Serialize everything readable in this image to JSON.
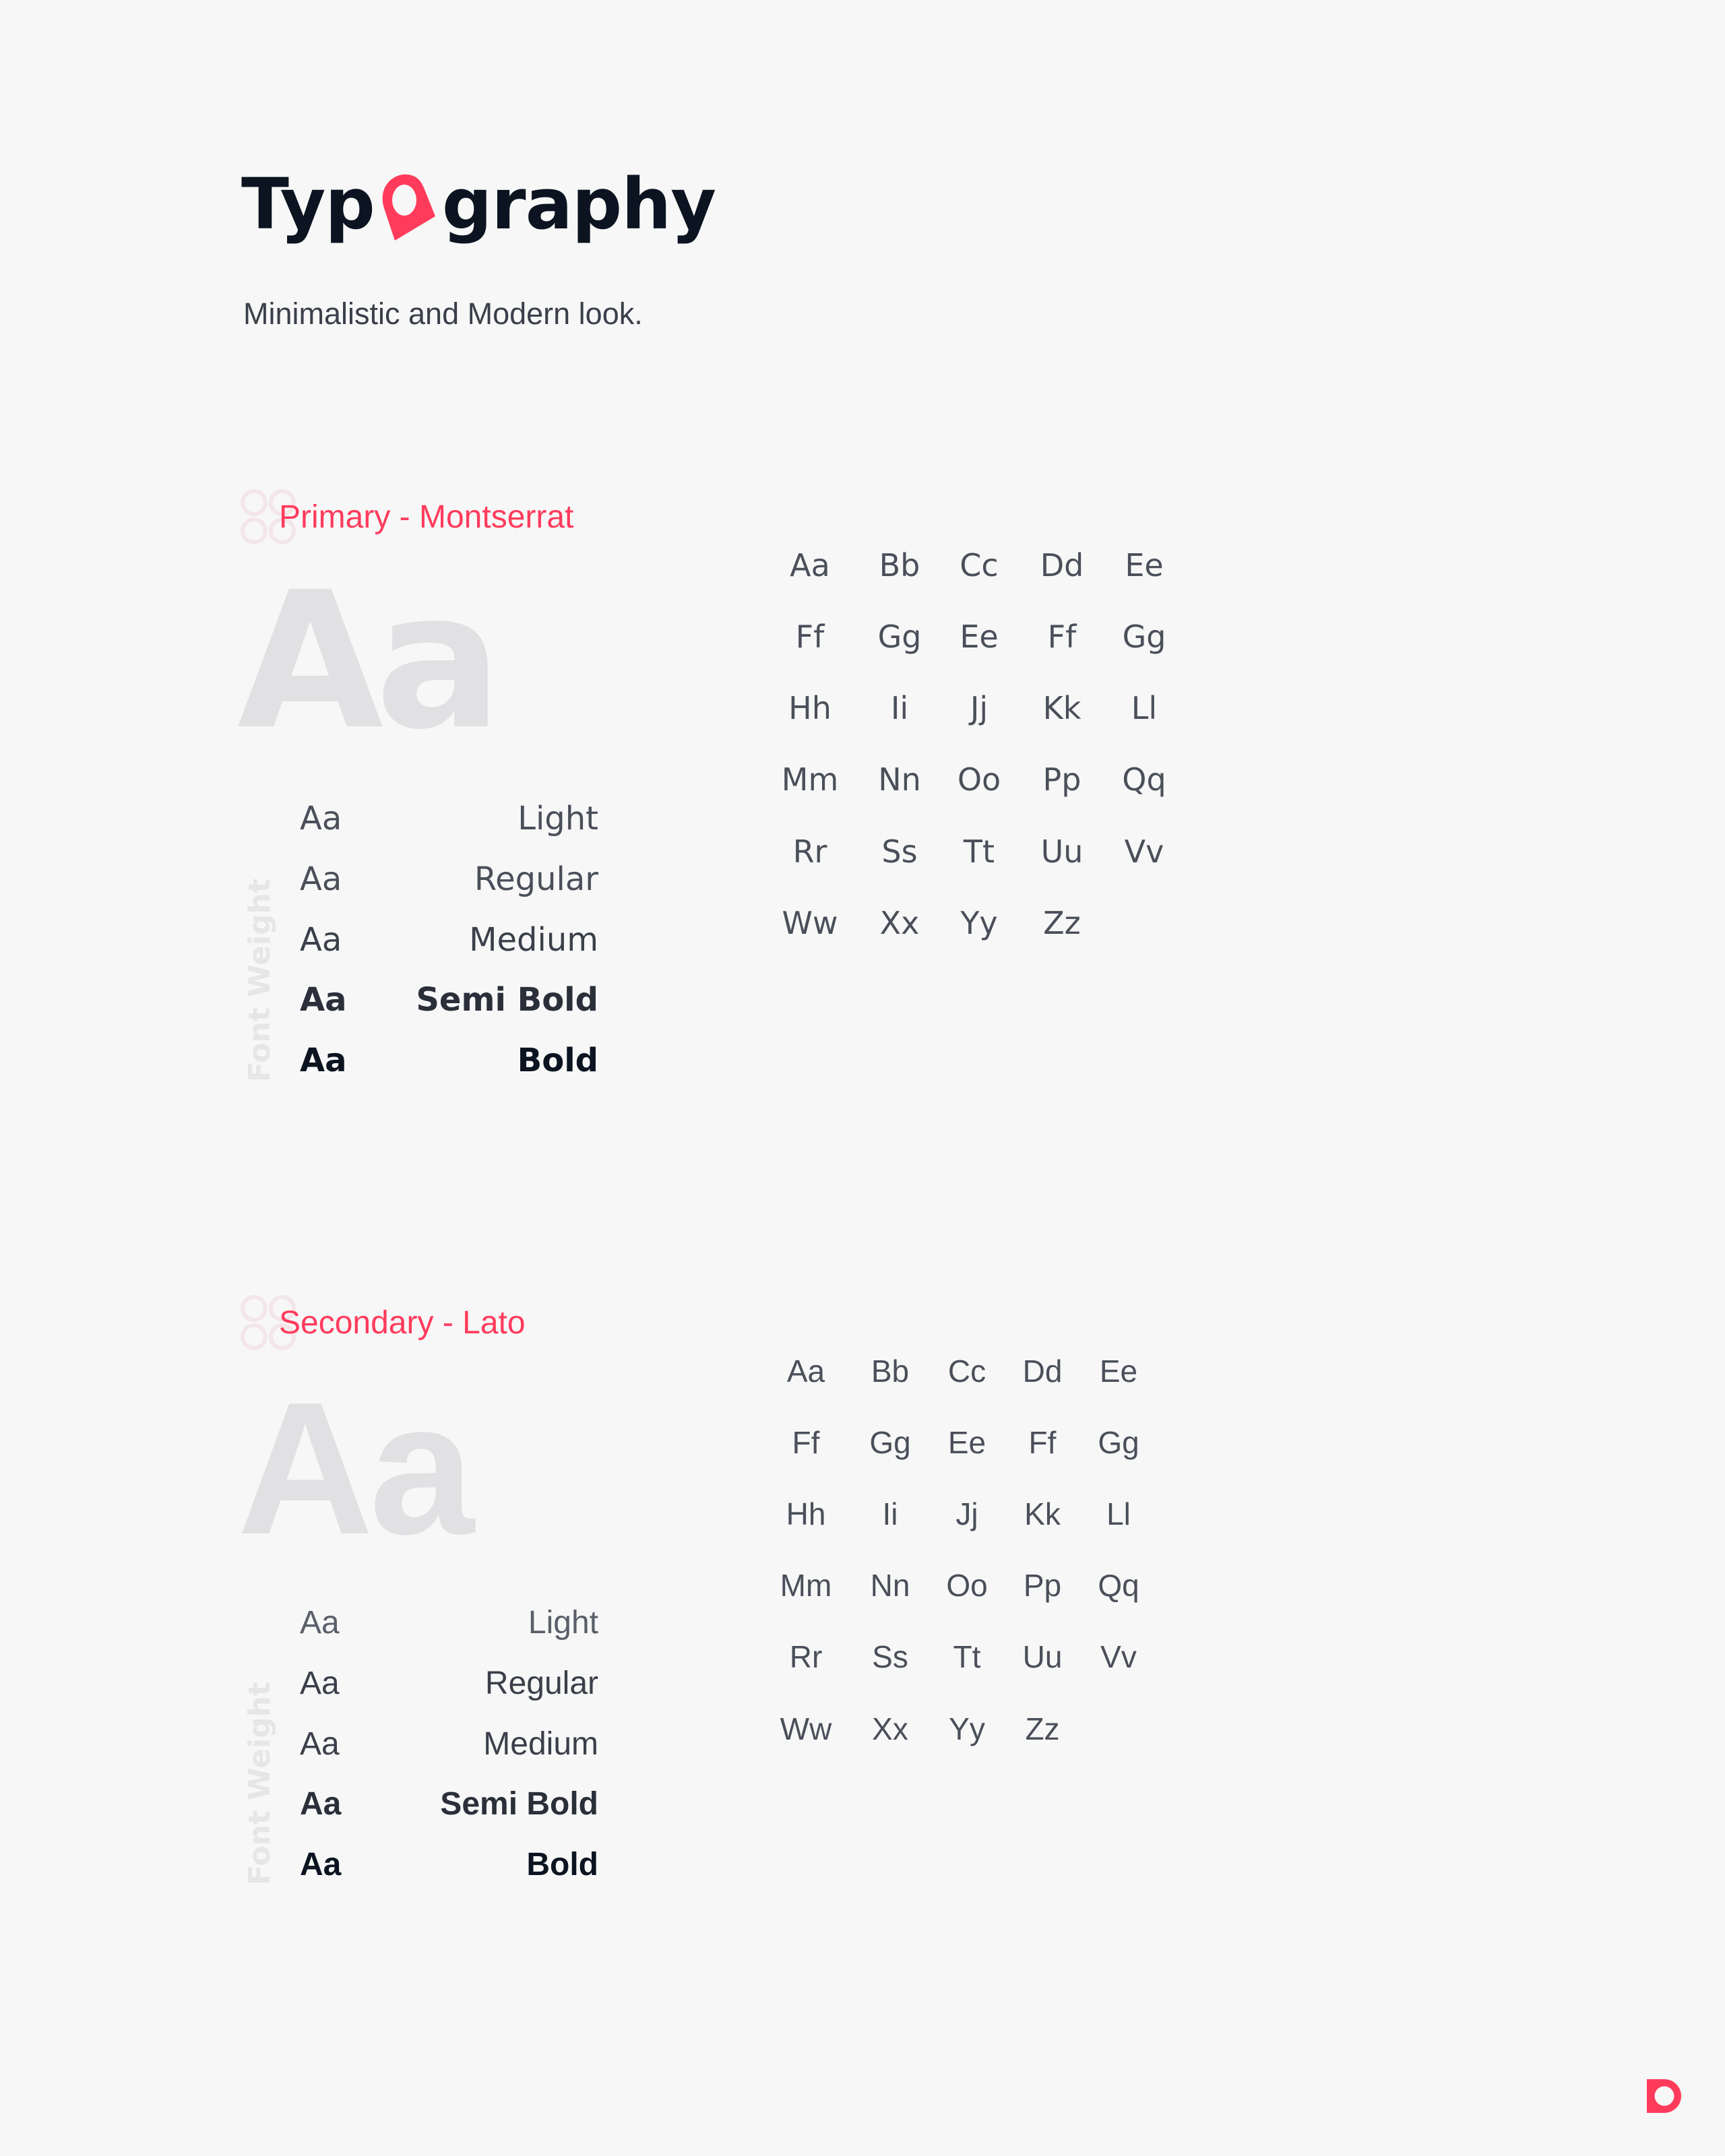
{
  "header": {
    "title_before": "Typ",
    "title_after": "graphy",
    "title_icon": "map-pin-icon",
    "subtitle": "Minimalistic and Modern look."
  },
  "accent_color": "#ff3b5c",
  "sections": [
    {
      "label": "Primary - Montserrat",
      "sample": "Aa",
      "axis_label": "Font Weight",
      "weights": [
        {
          "sample": "Aa",
          "name": "Light"
        },
        {
          "sample": "Aa",
          "name": "Regular"
        },
        {
          "sample": "Aa",
          "name": "Medium"
        },
        {
          "sample": "Aa",
          "name": "Semi Bold"
        },
        {
          "sample": "Aa",
          "name": "Bold"
        }
      ],
      "glyphs": [
        "Aa",
        "Bb",
        "Cc",
        "Dd",
        "Ee",
        "Ff",
        "Gg",
        "Ee",
        "Ff",
        "Gg",
        "Hh",
        "Ii",
        "Jj",
        "Kk",
        "Ll",
        "Mm",
        "Nn",
        "Oo",
        "Pp",
        "Qq",
        "Rr",
        "Ss",
        "Tt",
        "Uu",
        "Vv",
        "Ww",
        "Xx",
        "Yy",
        "Zz"
      ]
    },
    {
      "label": "Secondary - Lato",
      "sample": "Aa",
      "axis_label": "Font Weight",
      "weights": [
        {
          "sample": "Aa",
          "name": "Light"
        },
        {
          "sample": "Aa",
          "name": "Regular"
        },
        {
          "sample": "Aa",
          "name": "Medium"
        },
        {
          "sample": "Aa",
          "name": "Semi Bold"
        },
        {
          "sample": "Aa",
          "name": "Bold"
        }
      ],
      "glyphs": [
        "Aa",
        "Bb",
        "Cc",
        "Dd",
        "Ee",
        "Ff",
        "Gg",
        "Ee",
        "Ff",
        "Gg",
        "Hh",
        "Ii",
        "Jj",
        "Kk",
        "Ll",
        "Mm",
        "Nn",
        "Oo",
        "Pp",
        "Qq",
        "Rr",
        "Ss",
        "Tt",
        "Uu",
        "Vv",
        "Ww",
        "Xx",
        "Yy",
        "Zz"
      ]
    }
  ],
  "footer": {
    "logo_icon": "brand-d-logo-icon"
  }
}
